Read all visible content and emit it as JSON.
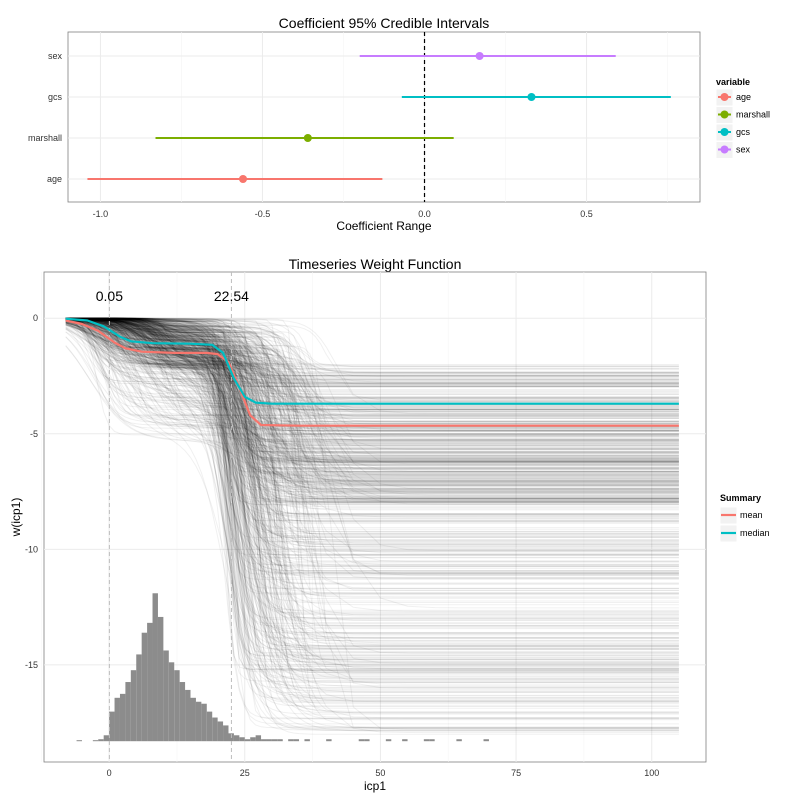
{
  "chart_data": [
    {
      "type": "scatter",
      "subtype": "pointrange",
      "title": "Coefficient 95% Credible Intervals",
      "xlabel": "Coefficient Range",
      "ylabel": "",
      "xlim": [
        -1.1,
        0.85
      ],
      "xticks": [
        -1.0,
        -0.5,
        0.0,
        0.5
      ],
      "xtick_labels": [
        "-1.0",
        "-0.5",
        "0.0",
        "0.5"
      ],
      "reference_line_x": 0,
      "legend": {
        "title": "variable",
        "position": "right",
        "entries": [
          "age",
          "marshall",
          "gcs",
          "sex"
        ]
      },
      "categories": [
        "sex",
        "gcs",
        "marshall",
        "age"
      ],
      "series": [
        {
          "name": "sex",
          "color": "#C77CFF",
          "estimate": 0.17,
          "lower": -0.2,
          "upper": 0.59
        },
        {
          "name": "gcs",
          "color": "#00BFC4",
          "estimate": 0.33,
          "lower": -0.07,
          "upper": 0.76
        },
        {
          "name": "marshall",
          "color": "#7CAE00",
          "estimate": -0.36,
          "lower": -0.83,
          "upper": 0.09
        },
        {
          "name": "age",
          "color": "#F8766D",
          "estimate": -0.56,
          "lower": -1.04,
          "upper": -0.13
        }
      ],
      "grid": true
    },
    {
      "type": "line",
      "title": "Timeseries Weight Function",
      "xlabel": "icp1",
      "ylabel": "w(icp1)",
      "xlim": [
        -12,
        110
      ],
      "ylim": [
        -19.2,
        2
      ],
      "xticks": [
        0,
        25,
        50,
        75,
        100
      ],
      "xtick_labels": [
        "0",
        "25",
        "50",
        "75",
        "100"
      ],
      "yticks": [
        0,
        -5,
        -10,
        -15
      ],
      "ytick_labels": [
        "0",
        "-5",
        "-10",
        "-15"
      ],
      "vlines": [
        0.05,
        22.54
      ],
      "vline_labels": [
        "0.05",
        "22.54"
      ],
      "legend": {
        "title": "Summary",
        "position": "right",
        "entries": [
          "mean",
          "median"
        ]
      },
      "series": [
        {
          "name": "mean",
          "color": "#F8766D",
          "x": [
            -8,
            -5,
            -2,
            1,
            3,
            6,
            12,
            18,
            20,
            22,
            24,
            26,
            28,
            35,
            50,
            75,
            105
          ],
          "y": [
            -0.1,
            -0.25,
            -0.55,
            -1.05,
            -1.3,
            -1.45,
            -1.5,
            -1.5,
            -1.55,
            -1.9,
            -3.0,
            -4.2,
            -4.62,
            -4.65,
            -4.65,
            -4.65,
            -4.65
          ]
        },
        {
          "name": "median",
          "color": "#00BFC4",
          "x": [
            -8,
            -4,
            -1,
            2,
            4,
            8,
            15,
            19,
            21,
            23,
            25,
            27,
            30,
            40,
            60,
            80,
            105
          ],
          "y": [
            -0.02,
            -0.1,
            -0.35,
            -0.8,
            -1.0,
            -1.08,
            -1.1,
            -1.15,
            -1.5,
            -2.6,
            -3.4,
            -3.65,
            -3.7,
            -3.7,
            -3.7,
            -3.7,
            -3.7
          ]
        }
      ],
      "histogram": {
        "bin_width": 1,
        "bin_starts": [
          -6,
          -5,
          -4,
          -3,
          -2,
          -1,
          0,
          1,
          2,
          3,
          4,
          5,
          6,
          7,
          8,
          9,
          10,
          11,
          12,
          13,
          14,
          15,
          16,
          17,
          18,
          19,
          20,
          21,
          22,
          23,
          24,
          25,
          26,
          27,
          28,
          29,
          30,
          31,
          32,
          33,
          34,
          35,
          36,
          37,
          38,
          39,
          40,
          41,
          42,
          43,
          44,
          45,
          46,
          47,
          48,
          49,
          50,
          51,
          52,
          53,
          54,
          55,
          56,
          57,
          58,
          59,
          60,
          61,
          62,
          63,
          64,
          65,
          66,
          67,
          68,
          69
        ],
        "counts": [
          0.5,
          0,
          0,
          0.5,
          1,
          3,
          15,
          22,
          24,
          30,
          36,
          44,
          55,
          60,
          75,
          63,
          46,
          40,
          36,
          30,
          26,
          22,
          20,
          19,
          15,
          12,
          10,
          8,
          4,
          3,
          2,
          1,
          2,
          3,
          1,
          1,
          1,
          1,
          0,
          1,
          1,
          0,
          1,
          0,
          0,
          0,
          1,
          0,
          0,
          0,
          0,
          0,
          1,
          1,
          0,
          0,
          0,
          1,
          0,
          0,
          1,
          0,
          0,
          0,
          1,
          1,
          0,
          0,
          0,
          0,
          1,
          0,
          0,
          0,
          0,
          1
        ],
        "max_count": 75
      },
      "grid": true
    }
  ]
}
